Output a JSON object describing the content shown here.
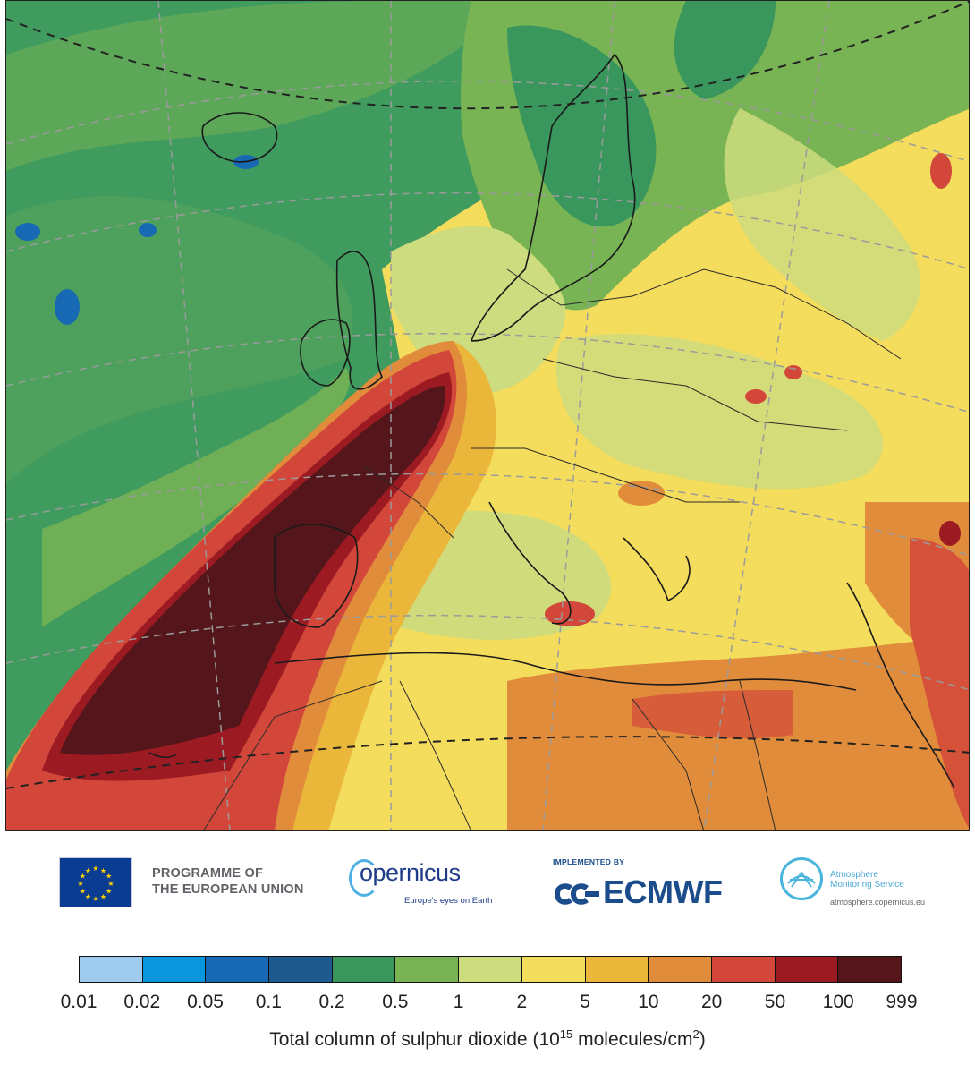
{
  "map": {
    "field": "Total column of sulphur dioxide",
    "land_color": "#f3d75d",
    "ocean_color": "#3f9b5e"
  },
  "logos": {
    "eu_programme": "PROGRAMME OF\nTHE EUROPEAN UNION",
    "eu_programme_line1": "PROGRAMME OF",
    "eu_programme_line2": "THE EUROPEAN UNION",
    "copernicus_name": "opernicus",
    "copernicus_tagline": "Europe's eyes on Earth",
    "ecmwf_implemented": "IMPLEMENTED BY",
    "ecmwf_name": "ECMWF",
    "cams_title_line1": "Atmosphere",
    "cams_title_line2": "Monitoring Service",
    "cams_url": "atmosphere.copernicus.eu"
  },
  "colorbar": {
    "ticks": [
      "0.01",
      "0.02",
      "0.05",
      "0.1",
      "0.2",
      "0.5",
      "1",
      "2",
      "5",
      "10",
      "20",
      "50",
      "100",
      "999"
    ],
    "colors": [
      "#9ecbee",
      "#0a96dc",
      "#1769b4",
      "#1f5a8e",
      "#39965d",
      "#78b354",
      "#ccdc7e",
      "#f4dc5c",
      "#ebb73b",
      "#e18c3b",
      "#d2473a",
      "#9c1a22",
      "#54161a"
    ],
    "title_prefix": "Total column of sulphur dioxide (10",
    "title_exponent": "15",
    "title_mid": " molecules/cm",
    "title_unit_exponent": "2",
    "title_suffix": ")"
  }
}
